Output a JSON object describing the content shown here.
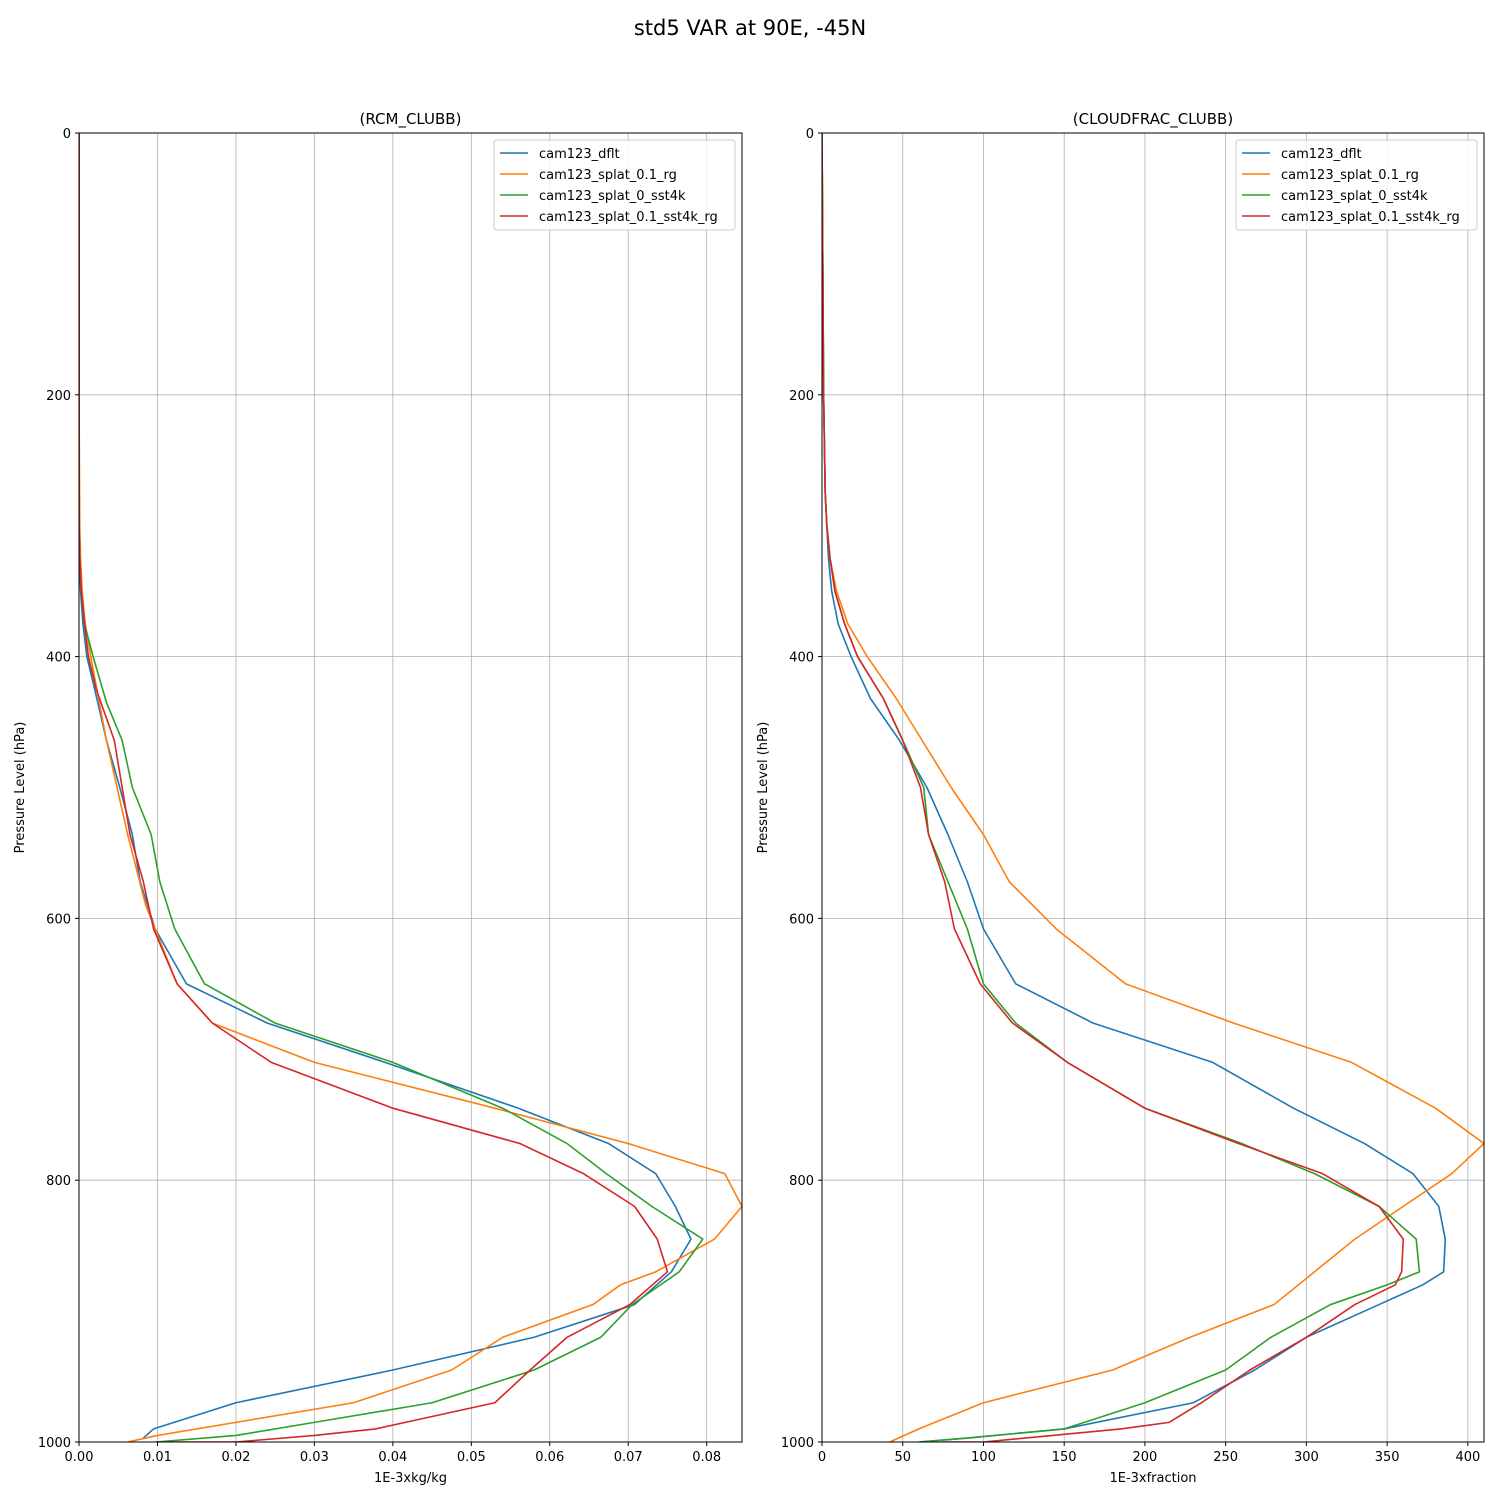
{
  "figure_title": "std5 VAR at 90E, -45N",
  "colors": {
    "cam123_dflt": "#1f77b4",
    "cam123_splat_0.1_rg": "#ff7f0e",
    "cam123_splat_0_sst4k": "#2ca02c",
    "cam123_splat_0.1_sst4k_rg": "#d62728",
    "grid": "#b0b0b0"
  },
  "chart_data": [
    {
      "type": "line",
      "title": "(RCM_CLUBB)",
      "xlabel": "1E-3xkg/kg",
      "ylabel": "Pressure Level (hPa)",
      "xlim": [
        0,
        0.0845
      ],
      "ylim": [
        1000,
        0
      ],
      "xticks": [
        "0.00",
        "0.01",
        "0.02",
        "0.03",
        "0.04",
        "0.05",
        "0.06",
        "0.07",
        "0.08"
      ],
      "xtick_values": [
        0,
        0.01,
        0.02,
        0.03,
        0.04,
        0.05,
        0.06,
        0.07,
        0.08
      ],
      "yticks": [
        "0",
        "200",
        "400",
        "600",
        "800",
        "1000"
      ],
      "ytick_values": [
        0,
        200,
        400,
        600,
        800,
        1000
      ],
      "grid": true,
      "legend_position": "top-right",
      "series": [
        {
          "name": "cam123_dflt",
          "x": [
            0,
            0,
            0,
            0.0001,
            0.0002,
            0.0005,
            0.001,
            0.002,
            0.0035,
            0.0052,
            0.0068,
            0.0078,
            0.0097,
            0.0137,
            0.024,
            0.039,
            0.056,
            0.0675,
            0.0735,
            0.076,
            0.078,
            0.0755,
            0.0708,
            0.058,
            0.04,
            0.02,
            0.0095,
            0.0082
          ],
          "y": [
            0,
            200,
            300,
            325,
            350,
            375,
            400,
            425,
            464,
            500,
            536,
            572,
            608,
            650,
            680,
            710,
            745,
            772,
            795,
            820,
            845,
            870,
            895,
            920,
            945,
            970,
            990,
            997
          ]
        },
        {
          "name": "cam123_splat_0.1_rg",
          "x": [
            0,
            0,
            0.0001,
            0.0002,
            0.0004,
            0.0008,
            0.0015,
            0.0035,
            0.0062,
            0.0085,
            0.0097,
            0.0125,
            0.017,
            0.03,
            0.053,
            0.07,
            0.0823,
            0.0845,
            0.081,
            0.0735,
            0.069,
            0.0655,
            0.054,
            0.0475,
            0.035,
            0.02,
            0.01,
            0.0062
          ],
          "y": [
            0,
            200,
            300,
            325,
            350,
            375,
            400,
            464,
            536,
            590,
            608,
            650,
            680,
            710,
            745,
            772,
            795,
            820,
            845,
            870,
            880,
            895,
            920,
            945,
            970,
            985,
            995,
            1000
          ]
        },
        {
          "name": "cam123_splat_0_sst4k",
          "x": [
            0,
            0,
            0,
            0.0001,
            0.0003,
            0.0007,
            0.0018,
            0.0035,
            0.0055,
            0.0068,
            0.0092,
            0.0103,
            0.0122,
            0.016,
            0.025,
            0.04,
            0.054,
            0.0622,
            0.0672,
            0.073,
            0.0795,
            0.0765,
            0.0705,
            0.0665,
            0.058,
            0.045,
            0.03,
            0.02,
            0.0098
          ],
          "y": [
            0,
            200,
            300,
            325,
            350,
            375,
            400,
            435,
            464,
            500,
            536,
            572,
            608,
            650,
            680,
            710,
            745,
            772,
            795,
            820,
            845,
            870,
            895,
            920,
            945,
            970,
            985,
            995,
            1000
          ]
        },
        {
          "name": "cam123_splat_0.1_sst4k_rg",
          "x": [
            0,
            0,
            0,
            0.0001,
            0.0003,
            0.0007,
            0.0012,
            0.0022,
            0.0045,
            0.0065,
            0.0082,
            0.0095,
            0.0125,
            0.017,
            0.0245,
            0.04,
            0.0562,
            0.0643,
            0.0708,
            0.0737,
            0.075,
            0.0702,
            0.0622,
            0.0575,
            0.053,
            0.0378,
            0.03,
            0.02,
            0.0098
          ],
          "y": [
            0,
            200,
            300,
            325,
            350,
            375,
            400,
            425,
            464,
            536,
            572,
            608,
            650,
            680,
            710,
            745,
            772,
            795,
            820,
            845,
            870,
            895,
            920,
            945,
            970,
            990,
            995,
            1000,
            1000
          ]
        }
      ]
    },
    {
      "type": "line",
      "title": "(CLOUDFRAC_CLUBB)",
      "xlabel": "1E-3xfraction",
      "ylabel": "Pressure Level (hPa)",
      "xlim": [
        0,
        410
      ],
      "ylim": [
        1000,
        0
      ],
      "xticks": [
        "0",
        "50",
        "100",
        "150",
        "200",
        "250",
        "300",
        "350",
        "400"
      ],
      "xtick_values": [
        0,
        50,
        100,
        150,
        200,
        250,
        300,
        350,
        400
      ],
      "yticks": [
        "0",
        "200",
        "400",
        "600",
        "800",
        "1000"
      ],
      "ytick_values": [
        0,
        200,
        400,
        600,
        800,
        1000
      ],
      "grid": true,
      "legend_position": "top-right",
      "series": [
        {
          "name": "cam123_dflt",
          "x": [
            0,
            1,
            2,
            3,
            4,
            6,
            10,
            18,
            30,
            48,
            65,
            78,
            90,
            100,
            120,
            168,
            242,
            292,
            336,
            366,
            382,
            386,
            385,
            372,
            345,
            300,
            268,
            230,
            150,
            90,
            60
          ],
          "y": [
            0,
            200,
            275,
            300,
            325,
            350,
            375,
            400,
            432,
            464,
            500,
            536,
            572,
            608,
            650,
            680,
            710,
            745,
            772,
            795,
            820,
            845,
            870,
            880,
            895,
            920,
            945,
            970,
            990,
            997,
            1000
          ]
        },
        {
          "name": "cam123_splat_0.1_rg",
          "x": [
            0,
            1,
            2,
            3,
            5,
            9,
            16,
            28,
            46,
            62,
            80,
            100,
            116,
            145,
            188,
            255,
            328,
            380,
            410,
            390,
            360,
            330,
            305,
            280,
            228,
            180,
            100,
            60,
            42
          ],
          "y": [
            0,
            200,
            275,
            300,
            325,
            350,
            375,
            400,
            432,
            464,
            500,
            536,
            572,
            608,
            650,
            680,
            710,
            745,
            772,
            795,
            820,
            845,
            870,
            895,
            920,
            945,
            970,
            990,
            1000
          ]
        },
        {
          "name": "cam123_splat_0_sst4k",
          "x": [
            0,
            1,
            2,
            3,
            5,
            8,
            14,
            22,
            38,
            50,
            63,
            66,
            78,
            90,
            100,
            120,
            152,
            200,
            260,
            305,
            345,
            368,
            370,
            350,
            315,
            278,
            250,
            200,
            150,
            90,
            60
          ],
          "y": [
            0,
            200,
            275,
            300,
            325,
            350,
            375,
            400,
            432,
            464,
            500,
            536,
            572,
            608,
            650,
            680,
            710,
            745,
            772,
            795,
            820,
            845,
            870,
            880,
            895,
            920,
            945,
            970,
            990,
            997,
            1000
          ]
        },
        {
          "name": "cam123_splat_0.1_sst4k_rg",
          "x": [
            0,
            1,
            2,
            3,
            5,
            8,
            14,
            22,
            38,
            50,
            61,
            66,
            76,
            82,
            98,
            118,
            152,
            200,
            258,
            310,
            345,
            360,
            359,
            355,
            330,
            300,
            265,
            235,
            215,
            185,
            100,
            74
          ],
          "y": [
            0,
            200,
            275,
            300,
            325,
            350,
            375,
            400,
            432,
            464,
            500,
            536,
            572,
            608,
            650,
            680,
            710,
            745,
            772,
            795,
            820,
            845,
            870,
            880,
            895,
            920,
            945,
            970,
            985,
            990,
            1000,
            1000
          ]
        }
      ]
    }
  ]
}
